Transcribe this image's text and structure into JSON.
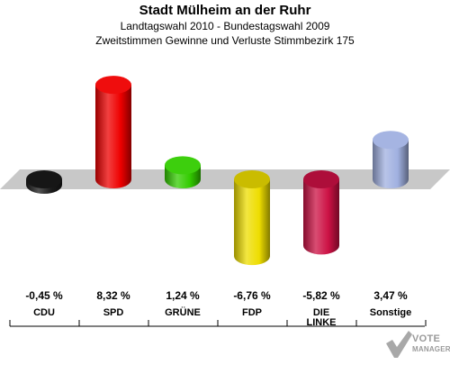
{
  "title": "Stadt Mülheim an der Ruhr",
  "subtitle1": "Landtagswahl 2010 - Bundestagswahl 2009",
  "subtitle2": "Zweitstimmen Gewinne und Verluste Stimmbezirk 175",
  "logo": {
    "line1": "VOTE",
    "line2": "MANAGER"
  },
  "chart_data": {
    "type": "bar",
    "title": "Stadt Mülheim an der Ruhr",
    "categories": [
      "CDU",
      "SPD",
      "GRÜNE",
      "FDP",
      "DIE LINKE",
      "Sonstige"
    ],
    "category_lines": [
      [
        "CDU"
      ],
      [
        "SPD"
      ],
      [
        "GRÜNE"
      ],
      [
        "FDP"
      ],
      [
        "DIE",
        "LINKE"
      ],
      [
        "Sonstige"
      ]
    ],
    "values": [
      -0.45,
      8.32,
      1.24,
      -6.76,
      -5.82,
      3.47
    ],
    "value_labels": [
      "-0,45 %",
      "8,32 %",
      "1,24 %",
      "-6,76 %",
      "-5,82 %",
      "3,47 %"
    ],
    "colors": [
      "#1a1a1a",
      "#ee0000",
      "#33cc00",
      "#eedd00",
      "#cc1144",
      "#a0b0e0"
    ],
    "ylim": [
      -9,
      9
    ],
    "baseline_band": true,
    "legend": "none"
  }
}
